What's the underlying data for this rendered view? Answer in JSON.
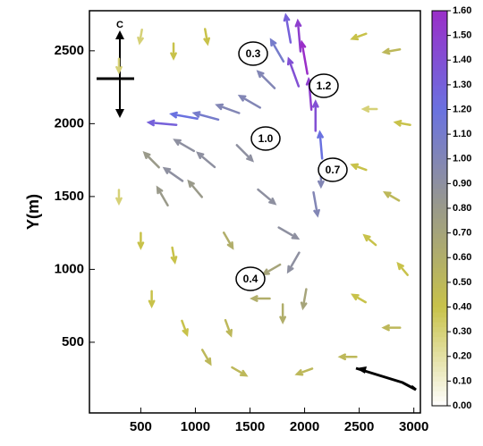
{
  "chart_data": {
    "type": "quiver",
    "ylabel": "Y(m)",
    "compass_label": "C",
    "xlim": [
      30,
      3060
    ],
    "xticks": [
      500,
      1000,
      1500,
      2000,
      2500,
      3000
    ],
    "ylim": [
      15,
      2775
    ],
    "yticks": [
      500,
      1000,
      1500,
      2000,
      2500
    ],
    "annotations": [
      "0.3",
      "1.2",
      "1.0",
      "0.7",
      "0.4"
    ],
    "vectors": [
      [
        1850,
        2650,
        1.3,
        100
      ],
      [
        1950,
        2600,
        1.5,
        95
      ],
      [
        2000,
        2450,
        1.6,
        100
      ],
      [
        1900,
        2350,
        1.4,
        110
      ],
      [
        2050,
        2200,
        1.5,
        95
      ],
      [
        2100,
        2050,
        1.4,
        90
      ],
      [
        2150,
        1850,
        1.2,
        95
      ],
      [
        1750,
        2500,
        1.1,
        120
      ],
      [
        1650,
        2300,
        1.0,
        135
      ],
      [
        1500,
        2150,
        1.0,
        150
      ],
      [
        1300,
        2100,
        1.0,
        160
      ],
      [
        1100,
        2050,
        1.1,
        165
      ],
      [
        900,
        2050,
        1.2,
        170
      ],
      [
        700,
        2000,
        1.3,
        175
      ],
      [
        900,
        1850,
        0.9,
        150
      ],
      [
        1100,
        1750,
        0.9,
        140
      ],
      [
        800,
        1650,
        0.9,
        145
      ],
      [
        600,
        1750,
        0.8,
        135
      ],
      [
        1000,
        1550,
        0.8,
        130
      ],
      [
        700,
        1500,
        0.8,
        120
      ],
      [
        1450,
        1800,
        0.9,
        -45
      ],
      [
        1650,
        1500,
        0.9,
        -40
      ],
      [
        1850,
        1250,
        0.9,
        -30
      ],
      [
        2100,
        1450,
        1.0,
        -80
      ],
      [
        2150,
        1650,
        1.0,
        -90
      ],
      [
        1900,
        1050,
        0.9,
        -120
      ],
      [
        1700,
        1000,
        0.7,
        -150
      ],
      [
        1600,
        800,
        0.6,
        180
      ],
      [
        1800,
        700,
        0.6,
        -90
      ],
      [
        2000,
        800,
        0.7,
        -100
      ],
      [
        1300,
        1200,
        0.6,
        -60
      ],
      [
        300,
        2400,
        0.3,
        -90
      ],
      [
        500,
        2600,
        0.3,
        -100
      ],
      [
        800,
        2500,
        0.4,
        -90
      ],
      [
        1100,
        2600,
        0.4,
        -80
      ],
      [
        300,
        1500,
        0.3,
        -90
      ],
      [
        500,
        1200,
        0.4,
        -90
      ],
      [
        800,
        1100,
        0.4,
        -80
      ],
      [
        600,
        800,
        0.4,
        -90
      ],
      [
        900,
        600,
        0.4,
        -70
      ],
      [
        1100,
        400,
        0.5,
        -60
      ],
      [
        1300,
        600,
        0.5,
        -70
      ],
      [
        1400,
        300,
        0.5,
        -30
      ],
      [
        2500,
        2600,
        0.4,
        200
      ],
      [
        2800,
        2500,
        0.5,
        190
      ],
      [
        2600,
        2100,
        0.3,
        180
      ],
      [
        2900,
        2000,
        0.4,
        170
      ],
      [
        2500,
        1700,
        0.4,
        160
      ],
      [
        2800,
        1500,
        0.5,
        150
      ],
      [
        2600,
        1200,
        0.4,
        140
      ],
      [
        2900,
        1000,
        0.4,
        130
      ],
      [
        2500,
        800,
        0.4,
        150
      ],
      [
        2800,
        600,
        0.5,
        180
      ],
      [
        2400,
        400,
        0.5,
        180
      ],
      [
        2000,
        300,
        0.5,
        200
      ]
    ],
    "colorbar": {
      "lim": [
        0,
        1.6
      ],
      "colors": [
        "#ffffff",
        "#c8c24a",
        "#9a9a8a",
        "#6a72e0",
        "#9a2ec8"
      ],
      "ticks": [
        {
          "value": 0,
          "label": "0.00"
        },
        {
          "value": 0.1,
          "label": "0.10"
        },
        {
          "value": 0.2,
          "label": "0.20"
        },
        {
          "value": 0.3,
          "label": "0.30"
        },
        {
          "value": 0.4,
          "label": "0.40"
        },
        {
          "value": 0.5,
          "label": "0.50"
        },
        {
          "value": 0.6,
          "label": "0.60"
        },
        {
          "value": 0.7,
          "label": "0.70"
        },
        {
          "value": 0.8,
          "label": "0.80"
        },
        {
          "value": 0.9,
          "label": "0.90"
        },
        {
          "value": 1,
          "label": "1.00"
        },
        {
          "value": 1.1,
          "label": "1.10"
        },
        {
          "value": 1.2,
          "label": "1.20"
        },
        {
          "value": 1.3,
          "label": "1.30"
        },
        {
          "value": 1.4,
          "label": "1.40"
        },
        {
          "value": 1.5,
          "label": "1.50"
        },
        {
          "value": 1.6,
          "label": "1.60"
        }
      ]
    }
  }
}
